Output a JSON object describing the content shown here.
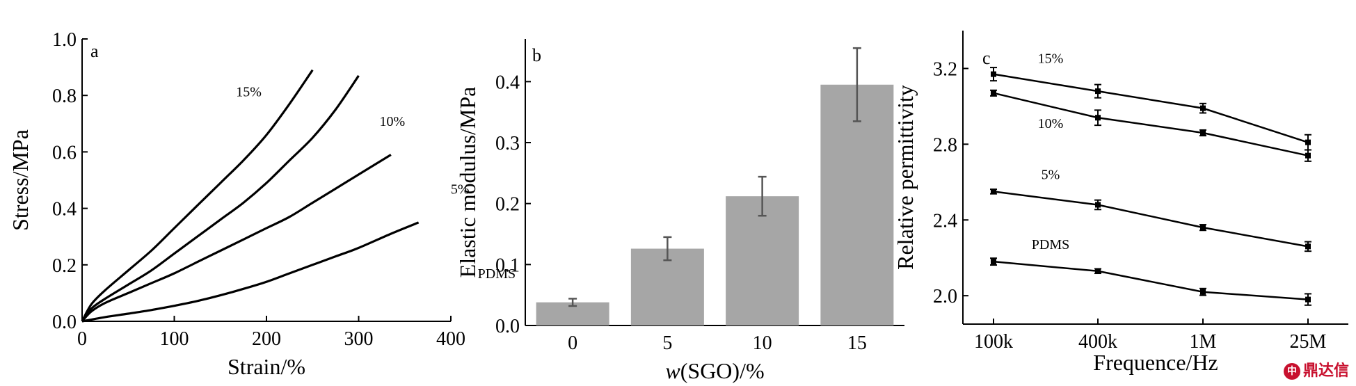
{
  "chart_data": [
    {
      "panel": "a",
      "type": "line",
      "xlabel": "Strain/%",
      "ylabel": "Stress/MPa",
      "xlim": [
        0,
        400
      ],
      "ylim": [
        0,
        1.0
      ],
      "xticks": [
        "0",
        "100",
        "200",
        "300",
        "400"
      ],
      "yticks": [
        "0.0",
        "0.2",
        "0.4",
        "0.6",
        "0.8",
        "1.0"
      ],
      "series": [
        {
          "name": "15%",
          "x": [
            0,
            10,
            25,
            50,
            75,
            100,
            125,
            150,
            175,
            200,
            225,
            250
          ],
          "y": [
            0,
            0.06,
            0.11,
            0.18,
            0.25,
            0.33,
            0.41,
            0.49,
            0.57,
            0.66,
            0.77,
            0.89
          ]
        },
        {
          "name": "10%",
          "x": [
            0,
            10,
            25,
            50,
            75,
            100,
            125,
            150,
            175,
            200,
            225,
            250,
            275,
            300
          ],
          "y": [
            0,
            0.045,
            0.08,
            0.13,
            0.18,
            0.24,
            0.3,
            0.36,
            0.42,
            0.49,
            0.57,
            0.65,
            0.75,
            0.87
          ]
        },
        {
          "name": "5%",
          "x": [
            0,
            10,
            25,
            50,
            75,
            100,
            125,
            150,
            175,
            200,
            225,
            250,
            275,
            300,
            335
          ],
          "y": [
            0,
            0.035,
            0.065,
            0.1,
            0.135,
            0.17,
            0.21,
            0.25,
            0.29,
            0.33,
            0.37,
            0.42,
            0.47,
            0.52,
            0.59
          ]
        },
        {
          "name": "PDMS",
          "x": [
            0,
            25,
            50,
            75,
            100,
            125,
            150,
            175,
            200,
            225,
            250,
            275,
            300,
            335,
            365
          ],
          "y": [
            0,
            0.015,
            0.027,
            0.04,
            0.055,
            0.072,
            0.092,
            0.115,
            0.14,
            0.17,
            0.2,
            0.23,
            0.26,
            0.31,
            0.35
          ]
        }
      ]
    },
    {
      "panel": "b",
      "type": "bar",
      "xlabel_prefix": "w",
      "xlabel_rest": "(SGO)/%",
      "ylabel": "Elastic modulus/MPa",
      "ylim": [
        0,
        0.47
      ],
      "yticks": [
        "0.0",
        "0.1",
        "0.2",
        "0.3",
        "0.4"
      ],
      "categories": [
        "0",
        "5",
        "10",
        "15"
      ],
      "values": [
        0.038,
        0.126,
        0.212,
        0.395
      ],
      "errors": [
        0.006,
        0.019,
        0.032,
        0.06
      ],
      "bar_color": "#a6a6a6"
    },
    {
      "panel": "c",
      "type": "line",
      "xlabel": "Frequence/Hz",
      "ylabel": "Relative permittivity",
      "categories": [
        "100k",
        "400k",
        "1M",
        "25M"
      ],
      "ylim": [
        1.85,
        3.4
      ],
      "yticks": [
        "2.0",
        "2.4",
        "2.8",
        "3.2"
      ],
      "series": [
        {
          "name": "15%",
          "values": [
            3.17,
            3.08,
            2.99,
            2.81
          ],
          "errors": [
            0.035,
            0.035,
            0.025,
            0.04
          ]
        },
        {
          "name": "10%",
          "values": [
            3.07,
            2.94,
            2.86,
            2.74
          ],
          "errors": [
            0.015,
            0.04,
            0.015,
            0.03
          ]
        },
        {
          "name": "5%",
          "values": [
            2.55,
            2.48,
            2.36,
            2.26
          ],
          "errors": [
            0.012,
            0.025,
            0.015,
            0.025
          ]
        },
        {
          "name": "PDMS",
          "values": [
            2.18,
            2.13,
            2.02,
            1.98
          ],
          "errors": [
            0.018,
            0.012,
            0.018,
            0.03
          ]
        }
      ]
    }
  ],
  "watermark": "鼎达信"
}
